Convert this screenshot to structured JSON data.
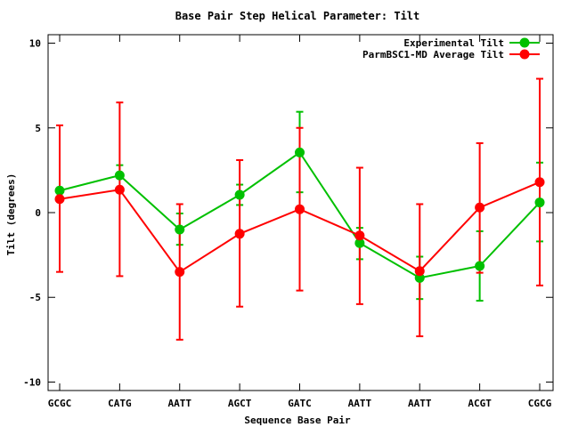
{
  "chart_data": {
    "type": "line",
    "title": "Base Pair Step Helical Parameter: Tilt",
    "xlabel": "Sequence Base Pair",
    "ylabel": "Tilt (degrees)",
    "categories": [
      "GCGC",
      "CATG",
      "AATT",
      "AGCT",
      "GATC",
      "AATT",
      "AATT",
      "ACGT",
      "CGCG"
    ],
    "ylim": [
      -10.5,
      10.5
    ],
    "yticks": [
      -10,
      -5,
      0,
      5,
      10
    ],
    "legend_position": "top-right",
    "grid": false,
    "series": [
      {
        "name": "Experimental Tilt",
        "color": "#00c000",
        "values": [
          1.3,
          2.2,
          -1.0,
          1.05,
          3.55,
          -1.8,
          -3.85,
          -3.15,
          0.6
        ],
        "err_low": [
          1.25,
          2.15,
          -1.9,
          0.45,
          1.2,
          -2.75,
          -5.1,
          -5.2,
          -1.7
        ],
        "err_high": [
          1.35,
          2.8,
          -0.05,
          1.65,
          5.95,
          -0.9,
          -2.6,
          -1.1,
          2.95
        ]
      },
      {
        "name": "ParmBSC1-MD Average Tilt",
        "color": "#ff0000",
        "values": [
          0.8,
          1.35,
          -3.5,
          -1.25,
          0.2,
          -1.35,
          -3.45,
          0.3,
          1.8
        ],
        "err_low": [
          -3.5,
          -3.75,
          -7.5,
          -5.55,
          -4.6,
          -5.4,
          -7.3,
          -3.55,
          -4.3
        ],
        "err_high": [
          5.15,
          6.5,
          0.5,
          3.1,
          5.0,
          2.65,
          0.5,
          4.1,
          7.9
        ]
      }
    ]
  }
}
